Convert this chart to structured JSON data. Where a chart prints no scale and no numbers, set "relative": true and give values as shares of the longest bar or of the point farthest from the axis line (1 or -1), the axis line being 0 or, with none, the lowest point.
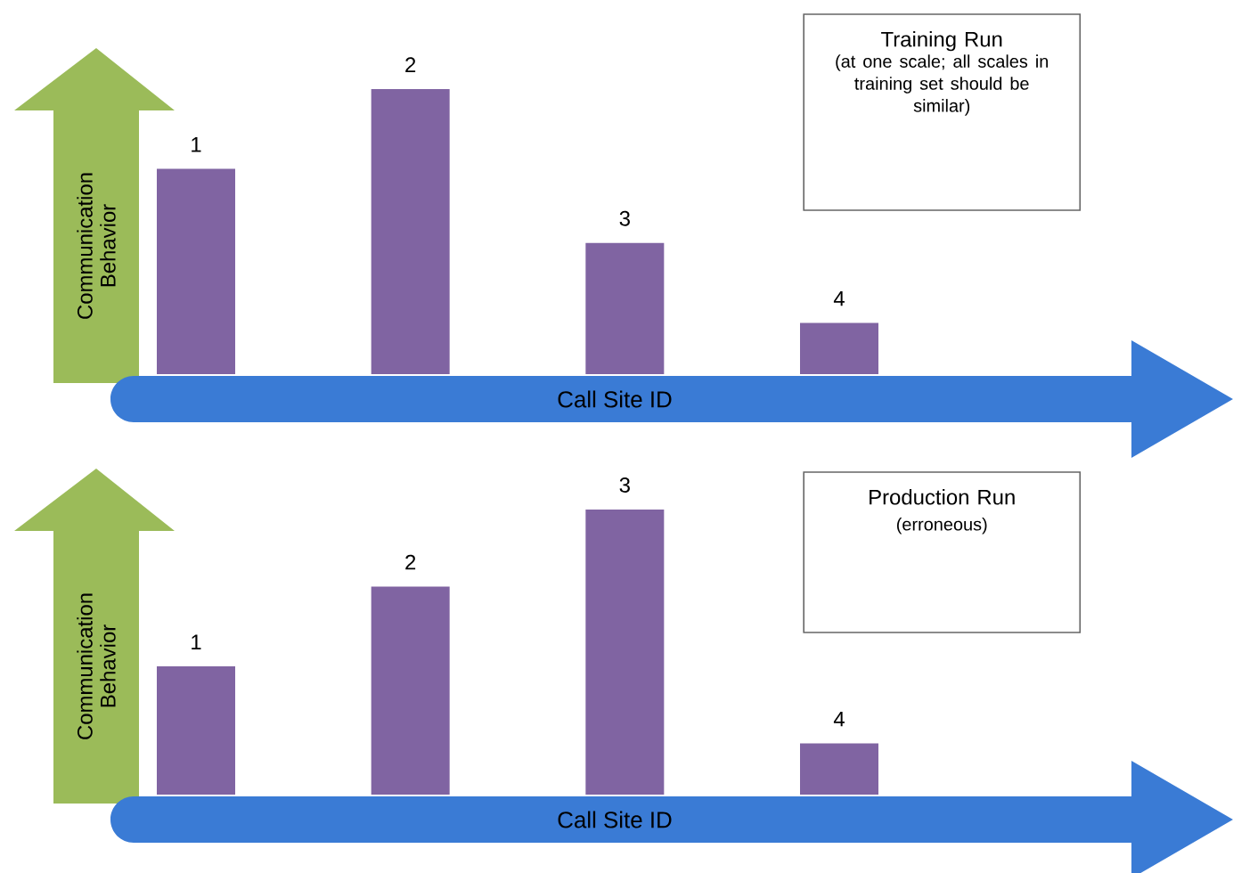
{
  "chart_data": [
    {
      "type": "bar",
      "relative": true,
      "title": "Training Run",
      "subtitle": "(at one scale; all scales in training set should be similar)",
      "xlabel": "Call Site ID",
      "ylabel": "Communication Behavior",
      "categories": [
        "1",
        "2",
        "3",
        "4"
      ],
      "values": [
        0.72,
        1,
        0.46,
        0.18
      ],
      "color": "#8064a2"
    },
    {
      "type": "bar",
      "relative": true,
      "title": "Production Run",
      "subtitle": "(erroneous)",
      "xlabel": "Call Site ID",
      "ylabel": "Communication Behavior",
      "categories": [
        "1",
        "2",
        "3",
        "4"
      ],
      "values": [
        0.45,
        0.73,
        1,
        0.18
      ],
      "color": "#8064a2"
    }
  ]
}
